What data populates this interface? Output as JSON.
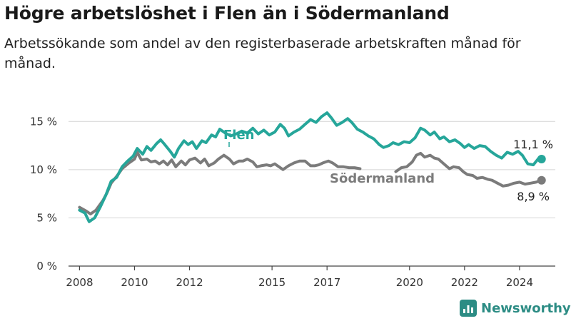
{
  "title": "Högre arbetslöshet i Flen än i Södermanland",
  "subtitle": "Arbetssökande som andel av den registerbaserade arbetskraften månad för månad.",
  "brand": {
    "name": "Newsworthy",
    "color": "#2c8c84",
    "icon": "bar-chart-logo-icon"
  },
  "chart_data": {
    "type": "line",
    "ylim": [
      0,
      16.5
    ],
    "yticks": [
      0,
      5,
      10,
      15
    ],
    "yticklabels": [
      "0 %",
      "5 %",
      "10 %",
      "15 %"
    ],
    "xlim": [
      2007.6,
      2025.3
    ],
    "xticks": [
      2008,
      2010,
      2012,
      2015,
      2017,
      2020,
      2022,
      2024
    ],
    "xticklabels": [
      "2008",
      "2010",
      "2012",
      "2015",
      "2017",
      "2020",
      "2022",
      "2024"
    ],
    "grid": true,
    "series": [
      {
        "name": "Södermanland",
        "color": "#7b7b7b",
        "end_label": "8,9 %",
        "points": [
          [
            2008.0,
            6.1
          ],
          [
            2008.25,
            5.7
          ],
          [
            2008.4,
            5.4
          ],
          [
            2008.6,
            5.8
          ],
          [
            2008.85,
            6.8
          ],
          [
            2009.0,
            7.6
          ],
          [
            2009.15,
            8.6
          ],
          [
            2009.35,
            9.3
          ],
          [
            2009.55,
            10.1
          ],
          [
            2009.8,
            10.7
          ],
          [
            2010.0,
            11.1
          ],
          [
            2010.1,
            11.8
          ],
          [
            2010.25,
            11.0
          ],
          [
            2010.45,
            11.1
          ],
          [
            2010.6,
            10.8
          ],
          [
            2010.75,
            10.9
          ],
          [
            2010.9,
            10.6
          ],
          [
            2011.05,
            10.9
          ],
          [
            2011.2,
            10.5
          ],
          [
            2011.35,
            11.0
          ],
          [
            2011.5,
            10.3
          ],
          [
            2011.7,
            10.9
          ],
          [
            2011.85,
            10.5
          ],
          [
            2012.0,
            11.0
          ],
          [
            2012.2,
            11.2
          ],
          [
            2012.4,
            10.7
          ],
          [
            2012.55,
            11.1
          ],
          [
            2012.7,
            10.4
          ],
          [
            2012.9,
            10.7
          ],
          [
            2013.05,
            11.1
          ],
          [
            2013.25,
            11.5
          ],
          [
            2013.45,
            11.1
          ],
          [
            2013.6,
            10.6
          ],
          [
            2013.8,
            10.9
          ],
          [
            2013.95,
            10.9
          ],
          [
            2014.1,
            11.1
          ],
          [
            2014.3,
            10.8
          ],
          [
            2014.45,
            10.3
          ],
          [
            2014.6,
            10.4
          ],
          [
            2014.8,
            10.5
          ],
          [
            2014.95,
            10.4
          ],
          [
            2015.1,
            10.6
          ],
          [
            2015.25,
            10.3
          ],
          [
            2015.4,
            10.0
          ],
          [
            2015.6,
            10.4
          ],
          [
            2015.8,
            10.7
          ],
          [
            2016.0,
            10.9
          ],
          [
            2016.2,
            10.9
          ],
          [
            2016.4,
            10.4
          ],
          [
            2016.55,
            10.4
          ],
          [
            2016.7,
            10.5
          ],
          [
            2016.85,
            10.7
          ],
          [
            2017.05,
            10.9
          ],
          [
            2017.2,
            10.7
          ],
          [
            2017.4,
            10.3
          ],
          [
            2017.6,
            10.3
          ],
          [
            2017.8,
            10.2
          ],
          [
            2018.0,
            10.2
          ],
          [
            2018.2,
            10.1
          ],
          [
            2019.5,
            9.8
          ],
          [
            2019.7,
            10.2
          ],
          [
            2019.9,
            10.3
          ],
          [
            2020.1,
            10.8
          ],
          [
            2020.25,
            11.5
          ],
          [
            2020.4,
            11.7
          ],
          [
            2020.55,
            11.3
          ],
          [
            2020.75,
            11.5
          ],
          [
            2020.9,
            11.2
          ],
          [
            2021.05,
            11.1
          ],
          [
            2021.25,
            10.6
          ],
          [
            2021.45,
            10.1
          ],
          [
            2021.6,
            10.3
          ],
          [
            2021.8,
            10.2
          ],
          [
            2021.95,
            9.8
          ],
          [
            2022.1,
            9.5
          ],
          [
            2022.3,
            9.4
          ],
          [
            2022.45,
            9.1
          ],
          [
            2022.65,
            9.2
          ],
          [
            2022.85,
            9.0
          ],
          [
            2023.0,
            8.9
          ],
          [
            2023.2,
            8.6
          ],
          [
            2023.4,
            8.3
          ],
          [
            2023.6,
            8.4
          ],
          [
            2023.8,
            8.6
          ],
          [
            2024.0,
            8.7
          ],
          [
            2024.2,
            8.5
          ],
          [
            2024.4,
            8.6
          ],
          [
            2024.6,
            8.7
          ],
          [
            2024.8,
            8.9
          ]
        ]
      },
      {
        "name": "Flen",
        "color": "#26a69a",
        "end_label": "11,1 %",
        "points": [
          [
            2008.0,
            5.8
          ],
          [
            2008.2,
            5.5
          ],
          [
            2008.35,
            4.6
          ],
          [
            2008.55,
            5.0
          ],
          [
            2008.75,
            6.1
          ],
          [
            2008.95,
            7.3
          ],
          [
            2009.15,
            8.8
          ],
          [
            2009.35,
            9.2
          ],
          [
            2009.55,
            10.3
          ],
          [
            2009.75,
            10.9
          ],
          [
            2009.95,
            11.4
          ],
          [
            2010.1,
            12.2
          ],
          [
            2010.3,
            11.6
          ],
          [
            2010.45,
            12.4
          ],
          [
            2010.6,
            12.0
          ],
          [
            2010.8,
            12.7
          ],
          [
            2010.95,
            13.1
          ],
          [
            2011.1,
            12.6
          ],
          [
            2011.3,
            11.9
          ],
          [
            2011.45,
            11.3
          ],
          [
            2011.6,
            12.2
          ],
          [
            2011.8,
            13.0
          ],
          [
            2011.95,
            12.6
          ],
          [
            2012.1,
            12.9
          ],
          [
            2012.25,
            12.2
          ],
          [
            2012.45,
            13.0
          ],
          [
            2012.6,
            12.8
          ],
          [
            2012.8,
            13.6
          ],
          [
            2012.95,
            13.4
          ],
          [
            2013.1,
            14.2
          ],
          [
            2013.3,
            13.8
          ],
          [
            2013.5,
            13.5
          ],
          [
            2013.7,
            13.7
          ],
          [
            2013.9,
            14.0
          ],
          [
            2014.1,
            13.8
          ],
          [
            2014.3,
            14.3
          ],
          [
            2014.5,
            13.7
          ],
          [
            2014.7,
            14.1
          ],
          [
            2014.9,
            13.6
          ],
          [
            2015.1,
            13.9
          ],
          [
            2015.3,
            14.7
          ],
          [
            2015.45,
            14.3
          ],
          [
            2015.6,
            13.5
          ],
          [
            2015.8,
            13.9
          ],
          [
            2016.0,
            14.2
          ],
          [
            2016.2,
            14.7
          ],
          [
            2016.4,
            15.2
          ],
          [
            2016.6,
            14.9
          ],
          [
            2016.8,
            15.5
          ],
          [
            2017.0,
            15.9
          ],
          [
            2017.15,
            15.4
          ],
          [
            2017.35,
            14.6
          ],
          [
            2017.55,
            14.9
          ],
          [
            2017.75,
            15.3
          ],
          [
            2017.9,
            14.9
          ],
          [
            2018.1,
            14.2
          ],
          [
            2018.3,
            13.9
          ],
          [
            2018.5,
            13.5
          ],
          [
            2018.7,
            13.2
          ],
          [
            2018.9,
            12.6
          ],
          [
            2019.05,
            12.3
          ],
          [
            2019.25,
            12.5
          ],
          [
            2019.4,
            12.8
          ],
          [
            2019.6,
            12.6
          ],
          [
            2019.8,
            12.9
          ],
          [
            2020.0,
            12.8
          ],
          [
            2020.2,
            13.3
          ],
          [
            2020.4,
            14.3
          ],
          [
            2020.55,
            14.1
          ],
          [
            2020.75,
            13.6
          ],
          [
            2020.9,
            13.9
          ],
          [
            2021.1,
            13.2
          ],
          [
            2021.25,
            13.4
          ],
          [
            2021.45,
            12.9
          ],
          [
            2021.65,
            13.1
          ],
          [
            2021.85,
            12.7
          ],
          [
            2022.0,
            12.3
          ],
          [
            2022.15,
            12.6
          ],
          [
            2022.35,
            12.2
          ],
          [
            2022.55,
            12.5
          ],
          [
            2022.75,
            12.4
          ],
          [
            2022.95,
            11.9
          ],
          [
            2023.15,
            11.5
          ],
          [
            2023.35,
            11.2
          ],
          [
            2023.55,
            11.8
          ],
          [
            2023.75,
            11.6
          ],
          [
            2023.95,
            11.9
          ],
          [
            2024.1,
            11.5
          ],
          [
            2024.3,
            10.6
          ],
          [
            2024.5,
            10.5
          ],
          [
            2024.7,
            11.2
          ],
          [
            2024.8,
            11.1
          ]
        ]
      }
    ]
  }
}
